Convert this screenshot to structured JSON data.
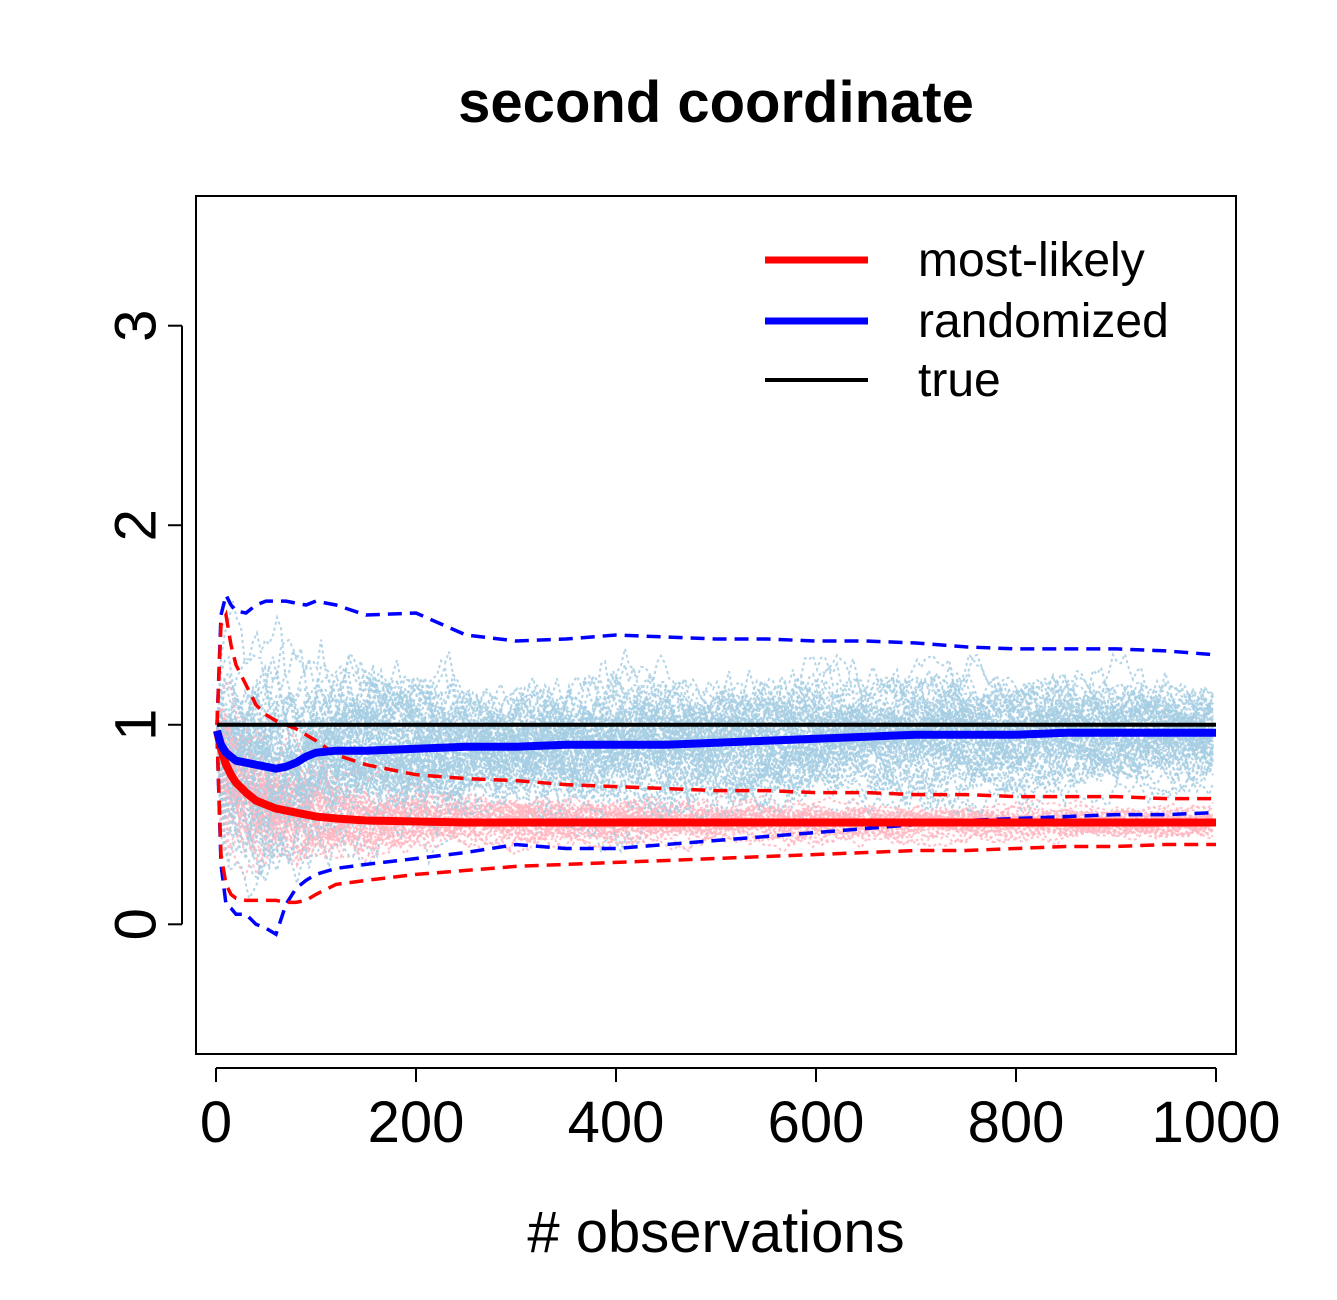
{
  "chart_data": {
    "type": "line",
    "title": "second coordinate",
    "xlabel": "# observations",
    "ylabel": "",
    "xlim": [
      -20,
      1020
    ],
    "ylim": [
      -0.65,
      3.65
    ],
    "x_ticks": [
      0,
      200,
      400,
      600,
      800,
      1000
    ],
    "x_tick_labels": [
      "0",
      "200",
      "400",
      "600",
      "800",
      "1000"
    ],
    "y_ticks": [
      0,
      1,
      2,
      3
    ],
    "y_tick_labels": [
      "0",
      "1",
      "2",
      "3"
    ],
    "legend": {
      "position": "top-right",
      "entries": [
        {
          "label": "most-likely",
          "color": "#ff0000"
        },
        {
          "label": "randomized",
          "color": "#0000ff"
        },
        {
          "label": "true",
          "color": "#000000"
        }
      ]
    },
    "colors": {
      "ml_samples": "#ffb6c1",
      "rand_samples": "#a6cee3",
      "ml": "#ff0000",
      "rand": "#0000ff",
      "true": "#000000"
    },
    "x": [
      1,
      5,
      10,
      15,
      20,
      30,
      40,
      50,
      60,
      70,
      80,
      90,
      100,
      120,
      150,
      200,
      250,
      300,
      350,
      400,
      450,
      500,
      550,
      600,
      650,
      700,
      750,
      800,
      850,
      900,
      950,
      1000
    ],
    "series": [
      {
        "name": "randomized",
        "role": "mean",
        "values": [
          0.97,
          0.9,
          0.86,
          0.84,
          0.82,
          0.81,
          0.8,
          0.79,
          0.78,
          0.79,
          0.81,
          0.84,
          0.86,
          0.87,
          0.87,
          0.88,
          0.89,
          0.89,
          0.9,
          0.9,
          0.9,
          0.91,
          0.92,
          0.93,
          0.94,
          0.95,
          0.95,
          0.95,
          0.96,
          0.96,
          0.96,
          0.96
        ]
      },
      {
        "name": "randomized upper band",
        "role": "upper",
        "values": [
          1.0,
          1.55,
          1.65,
          1.6,
          1.57,
          1.56,
          1.6,
          1.62,
          1.62,
          1.62,
          1.61,
          1.6,
          1.62,
          1.6,
          1.55,
          1.56,
          1.45,
          1.42,
          1.43,
          1.45,
          1.44,
          1.43,
          1.43,
          1.42,
          1.42,
          1.41,
          1.39,
          1.38,
          1.38,
          1.38,
          1.37,
          1.35
        ]
      },
      {
        "name": "randomized lower band",
        "role": "lower",
        "values": [
          0.95,
          0.3,
          0.1,
          0.08,
          0.05,
          0.05,
          0.0,
          -0.02,
          -0.05,
          0.1,
          0.18,
          0.22,
          0.25,
          0.28,
          0.3,
          0.33,
          0.36,
          0.4,
          0.38,
          0.38,
          0.4,
          0.42,
          0.44,
          0.46,
          0.48,
          0.5,
          0.52,
          0.53,
          0.54,
          0.55,
          0.55,
          0.56
        ]
      },
      {
        "name": "most-likely",
        "role": "mean",
        "values": [
          0.97,
          0.88,
          0.8,
          0.75,
          0.71,
          0.66,
          0.62,
          0.6,
          0.58,
          0.57,
          0.56,
          0.55,
          0.54,
          0.53,
          0.52,
          0.515,
          0.51,
          0.51,
          0.51,
          0.51,
          0.51,
          0.51,
          0.51,
          0.51,
          0.51,
          0.51,
          0.51,
          0.51,
          0.51,
          0.51,
          0.51,
          0.51
        ]
      },
      {
        "name": "most-likely upper band",
        "role": "upper",
        "values": [
          1.0,
          1.5,
          1.55,
          1.4,
          1.3,
          1.2,
          1.1,
          1.05,
          1.02,
          1.0,
          0.98,
          0.95,
          0.92,
          0.85,
          0.8,
          0.75,
          0.73,
          0.72,
          0.7,
          0.69,
          0.68,
          0.67,
          0.67,
          0.66,
          0.66,
          0.65,
          0.65,
          0.64,
          0.64,
          0.64,
          0.63,
          0.63
        ]
      },
      {
        "name": "most-likely lower band",
        "role": "lower",
        "values": [
          0.95,
          0.35,
          0.2,
          0.15,
          0.13,
          0.12,
          0.12,
          0.12,
          0.12,
          0.11,
          0.11,
          0.12,
          0.15,
          0.2,
          0.22,
          0.25,
          0.27,
          0.29,
          0.3,
          0.31,
          0.32,
          0.33,
          0.34,
          0.35,
          0.36,
          0.37,
          0.37,
          0.38,
          0.39,
          0.39,
          0.4,
          0.4
        ]
      },
      {
        "name": "true",
        "role": "true",
        "values": [
          1,
          1,
          1,
          1,
          1,
          1,
          1,
          1,
          1,
          1,
          1,
          1,
          1,
          1,
          1,
          1,
          1,
          1,
          1,
          1,
          1,
          1,
          1,
          1,
          1,
          1,
          1,
          1,
          1,
          1,
          1,
          1
        ]
      }
    ]
  }
}
